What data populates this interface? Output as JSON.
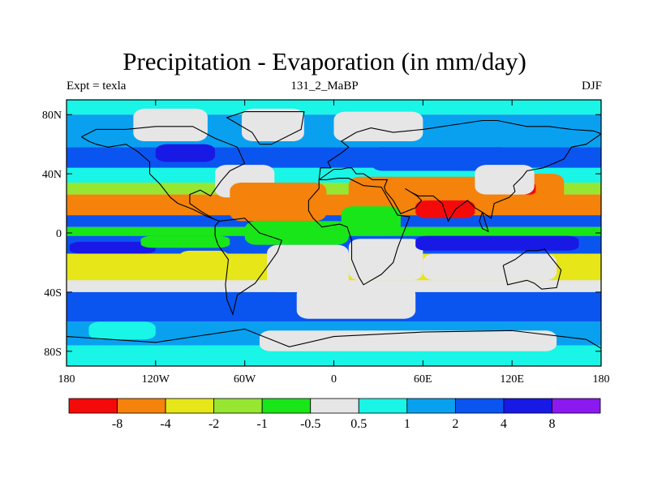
{
  "title": "Precipitation - Evaporation (in mm/day)",
  "subtitles": {
    "left": "Expt = texla",
    "center": "131_2_MaBP",
    "right": "DJF"
  },
  "axes": {
    "lon_ticks": [
      "180",
      "120W",
      "60W",
      "0",
      "60E",
      "120E",
      "180"
    ],
    "lat_ticks": [
      "80N",
      "40N",
      "0",
      "40S",
      "80S"
    ]
  },
  "colors": {
    "lt_-8": "#f50a0a",
    "-8_-4": "#f5820a",
    "-4_-2": "#e6e619",
    "-2_-1": "#96e632",
    "-1_-0.5": "#19e619",
    "-0.5_0.5": "#e6e6e6",
    "0.5_1": "#19f5e6",
    "1_2": "#0aa0f0",
    "2_4": "#0a55f0",
    "4_8": "#1919e6",
    "gt_8": "#8c19f0"
  },
  "colorbar": {
    "bins": [
      "lt_-8",
      "-8_-4",
      "-4_-2",
      "-2_-1",
      "-1_-0.5",
      "-0.5_0.5",
      "0.5_1",
      "1_2",
      "2_4",
      "4_8",
      "gt_8"
    ],
    "labels": [
      "-8",
      "-4",
      "-2",
      "-1",
      "-0.5",
      "0.5",
      "1",
      "2",
      "4",
      "8"
    ]
  },
  "map_data": {
    "lon_range": [
      -180,
      180
    ],
    "lat_range": [
      -90,
      90
    ],
    "bands": [
      {
        "lat": [
          80,
          90
        ],
        "bin": "0.5_1"
      },
      {
        "lat": [
          58,
          80
        ],
        "bin": "1_2"
      },
      {
        "lat": [
          44,
          58
        ],
        "bin": "2_4"
      },
      {
        "lat": [
          34,
          44
        ],
        "bin": "0.5_1"
      },
      {
        "lat": [
          26,
          34
        ],
        "bin": "-2_-1"
      },
      {
        "lat": [
          12,
          26
        ],
        "bin": "-8_-4"
      },
      {
        "lat": [
          4,
          12
        ],
        "bin": "2_4"
      },
      {
        "lat": [
          -2,
          4
        ],
        "bin": "-1_-0.5"
      },
      {
        "lat": [
          -14,
          -2
        ],
        "bin": "2_4"
      },
      {
        "lat": [
          -32,
          -14
        ],
        "bin": "-4_-2"
      },
      {
        "lat": [
          -40,
          -32
        ],
        "bin": "-0.5_0.5"
      },
      {
        "lat": [
          -60,
          -40
        ],
        "bin": "2_4"
      },
      {
        "lat": [
          -76,
          -60
        ],
        "bin": "1_2"
      },
      {
        "lat": [
          -90,
          -76
        ],
        "bin": "0.5_1"
      }
    ],
    "patches": [
      {
        "lon": [
          -135,
          -85
        ],
        "lat": [
          62,
          84
        ],
        "bin": "-0.5_0.5"
      },
      {
        "lon": [
          -62,
          -20
        ],
        "lat": [
          62,
          84
        ],
        "bin": "-0.5_0.5"
      },
      {
        "lon": [
          0,
          60
        ],
        "lat": [
          62,
          82
        ],
        "bin": "-0.5_0.5"
      },
      {
        "lon": [
          -120,
          -80
        ],
        "lat": [
          48,
          60
        ],
        "bin": "4_8"
      },
      {
        "lon": [
          25,
          120
        ],
        "lat": [
          42,
          58
        ],
        "bin": "2_4"
      },
      {
        "lon": [
          -80,
          -40
        ],
        "lat": [
          24,
          46
        ],
        "bin": "-0.5_0.5"
      },
      {
        "lon": [
          -70,
          -5
        ],
        "lat": [
          8,
          34
        ],
        "bin": "-8_-4"
      },
      {
        "lon": [
          10,
          120
        ],
        "lat": [
          14,
          38
        ],
        "bin": "-8_-4"
      },
      {
        "lon": [
          55,
          95
        ],
        "lat": [
          10,
          22
        ],
        "bin": "lt_-8"
      },
      {
        "lon": [
          125,
          155
        ],
        "lat": [
          20,
          40
        ],
        "bin": "-8_-4"
      },
      {
        "lon": [
          126,
          136
        ],
        "lat": [
          26,
          34
        ],
        "bin": "lt_-8"
      },
      {
        "lon": [
          95,
          135
        ],
        "lat": [
          26,
          46
        ],
        "bin": "-0.5_0.5"
      },
      {
        "lon": [
          5,
          45
        ],
        "lat": [
          -2,
          18
        ],
        "bin": "-1_-0.5"
      },
      {
        "lon": [
          -60,
          10
        ],
        "lat": [
          -8,
          8
        ],
        "bin": "-1_-0.5"
      },
      {
        "lon": [
          -45,
          10
        ],
        "lat": [
          -40,
          -8
        ],
        "bin": "-0.5_0.5"
      },
      {
        "lon": [
          10,
          60
        ],
        "lat": [
          -32,
          -4
        ],
        "bin": "-0.5_0.5"
      },
      {
        "lon": [
          55,
          165
        ],
        "lat": [
          -12,
          -2
        ],
        "bin": "4_8"
      },
      {
        "lon": [
          -178,
          -120
        ],
        "lat": [
          -14,
          -6
        ],
        "bin": "4_8"
      },
      {
        "lon": [
          -130,
          -70
        ],
        "lat": [
          -10,
          -2
        ],
        "bin": "-1_-0.5"
      },
      {
        "lon": [
          60,
          150
        ],
        "lat": [
          -32,
          -14
        ],
        "bin": "-0.5_0.5"
      },
      {
        "lon": [
          -105,
          -70
        ],
        "lat": [
          -30,
          -12
        ],
        "bin": "-4_-2"
      },
      {
        "lon": [
          -25,
          55
        ],
        "lat": [
          -58,
          -36
        ],
        "bin": "-0.5_0.5"
      },
      {
        "lon": [
          -165,
          -120
        ],
        "lat": [
          -72,
          -60
        ],
        "bin": "0.5_1"
      },
      {
        "lon": [
          -50,
          150
        ],
        "lat": [
          -80,
          -66
        ],
        "bin": "-0.5_0.5"
      }
    ],
    "coastlines": [
      [
        [
          -170,
          65
        ],
        [
          -160,
          70
        ],
        [
          -140,
          70
        ],
        [
          -120,
          72
        ],
        [
          -95,
          72
        ],
        [
          -80,
          64
        ],
        [
          -65,
          58
        ],
        [
          -60,
          47
        ],
        [
          -70,
          42
        ],
        [
          -76,
          35
        ],
        [
          -81,
          28
        ],
        [
          -83,
          25
        ],
        [
          -90,
          29
        ],
        [
          -97,
          26
        ],
        [
          -97,
          20
        ],
        [
          -90,
          15
        ],
        [
          -80,
          9
        ],
        [
          -77,
          8
        ],
        [
          -85,
          11
        ],
        [
          -95,
          16
        ],
        [
          -105,
          20
        ],
        [
          -110,
          24
        ],
        [
          -117,
          33
        ],
        [
          -124,
          40
        ],
        [
          -124,
          48
        ],
        [
          -132,
          55
        ],
        [
          -140,
          60
        ],
        [
          -152,
          58
        ],
        [
          -160,
          60
        ],
        [
          -165,
          62
        ],
        [
          -170,
          65
        ]
      ],
      [
        [
          -50,
          60
        ],
        [
          -42,
          60
        ],
        [
          -22,
          70
        ],
        [
          -20,
          82
        ],
        [
          -60,
          82
        ],
        [
          -72,
          78
        ],
        [
          -55,
          68
        ],
        [
          -50,
          60
        ]
      ],
      [
        [
          -77,
          8
        ],
        [
          -60,
          10
        ],
        [
          -50,
          0
        ],
        [
          -35,
          -5
        ],
        [
          -38,
          -13
        ],
        [
          -45,
          -23
        ],
        [
          -53,
          -34
        ],
        [
          -65,
          -42
        ],
        [
          -68,
          -55
        ],
        [
          -72,
          -45
        ],
        [
          -73,
          -35
        ],
        [
          -71,
          -18
        ],
        [
          -78,
          -8
        ],
        [
          -80,
          -2
        ],
        [
          -80,
          5
        ],
        [
          -77,
          8
        ]
      ],
      [
        [
          -10,
          36
        ],
        [
          -5,
          36
        ],
        [
          3,
          37
        ],
        [
          10,
          37
        ],
        [
          20,
          32
        ],
        [
          32,
          31
        ],
        [
          43,
          12
        ],
        [
          51,
          11
        ],
        [
          43,
          -10
        ],
        [
          40,
          -20
        ],
        [
          32,
          -28
        ],
        [
          20,
          -35
        ],
        [
          17,
          -30
        ],
        [
          12,
          -18
        ],
        [
          12,
          -5
        ],
        [
          9,
          4
        ],
        [
          4,
          6
        ],
        [
          -8,
          4
        ],
        [
          -14,
          10
        ],
        [
          -17,
          15
        ],
        [
          -17,
          22
        ],
        [
          -10,
          30
        ],
        [
          -10,
          36
        ]
      ],
      [
        [
          -10,
          36
        ],
        [
          -9,
          44
        ],
        [
          -2,
          44
        ],
        [
          -4,
          48
        ],
        [
          5,
          54
        ],
        [
          10,
          58
        ],
        [
          5,
          62
        ],
        [
          15,
          68
        ],
        [
          25,
          71
        ],
        [
          40,
          68
        ],
        [
          60,
          70
        ],
        [
          80,
          73
        ],
        [
          100,
          76
        ],
        [
          110,
          76
        ],
        [
          130,
          72
        ],
        [
          145,
          72
        ],
        [
          160,
          70
        ],
        [
          175,
          69
        ],
        [
          180,
          67
        ],
        [
          170,
          60
        ],
        [
          160,
          58
        ],
        [
          155,
          50
        ],
        [
          141,
          44
        ],
        [
          130,
          42
        ],
        [
          127,
          38
        ],
        [
          121,
          32
        ],
        [
          122,
          28
        ],
        [
          118,
          24
        ],
        [
          108,
          20
        ],
        [
          106,
          10
        ],
        [
          100,
          14
        ],
        [
          98,
          8
        ],
        [
          100,
          3
        ],
        [
          104,
          1
        ],
        [
          100,
          14
        ],
        [
          95,
          17
        ],
        [
          90,
          22
        ],
        [
          82,
          16
        ],
        [
          77,
          8
        ],
        [
          73,
          20
        ],
        [
          67,
          25
        ],
        [
          57,
          25
        ],
        [
          53,
          27
        ],
        [
          48,
          30
        ],
        [
          56,
          25
        ],
        [
          59,
          22
        ],
        [
          55,
          17
        ],
        [
          45,
          13
        ],
        [
          40,
          22
        ],
        [
          35,
          28
        ],
        [
          34,
          31
        ],
        [
          36,
          36
        ],
        [
          26,
          36
        ],
        [
          20,
          40
        ],
        [
          15,
          40
        ],
        [
          12,
          44
        ],
        [
          9,
          44
        ],
        [
          5,
          43
        ],
        [
          0,
          43
        ],
        [
          -10,
          36
        ]
      ],
      [
        [
          114,
          -22
        ],
        [
          122,
          -18
        ],
        [
          130,
          -12
        ],
        [
          137,
          -12
        ],
        [
          142,
          -11
        ],
        [
          145,
          -15
        ],
        [
          153,
          -25
        ],
        [
          150,
          -37
        ],
        [
          140,
          -38
        ],
        [
          135,
          -34
        ],
        [
          130,
          -32
        ],
        [
          117,
          -35
        ],
        [
          114,
          -22
        ]
      ],
      [
        [
          -180,
          -70
        ],
        [
          -120,
          -74
        ],
        [
          -60,
          -65
        ],
        [
          -30,
          -77
        ],
        [
          0,
          -70
        ],
        [
          60,
          -67
        ],
        [
          120,
          -66
        ],
        [
          170,
          -72
        ],
        [
          180,
          -78
        ],
        [
          180,
          -90
        ],
        [
          -180,
          -90
        ],
        [
          -180,
          -70
        ]
      ]
    ]
  }
}
